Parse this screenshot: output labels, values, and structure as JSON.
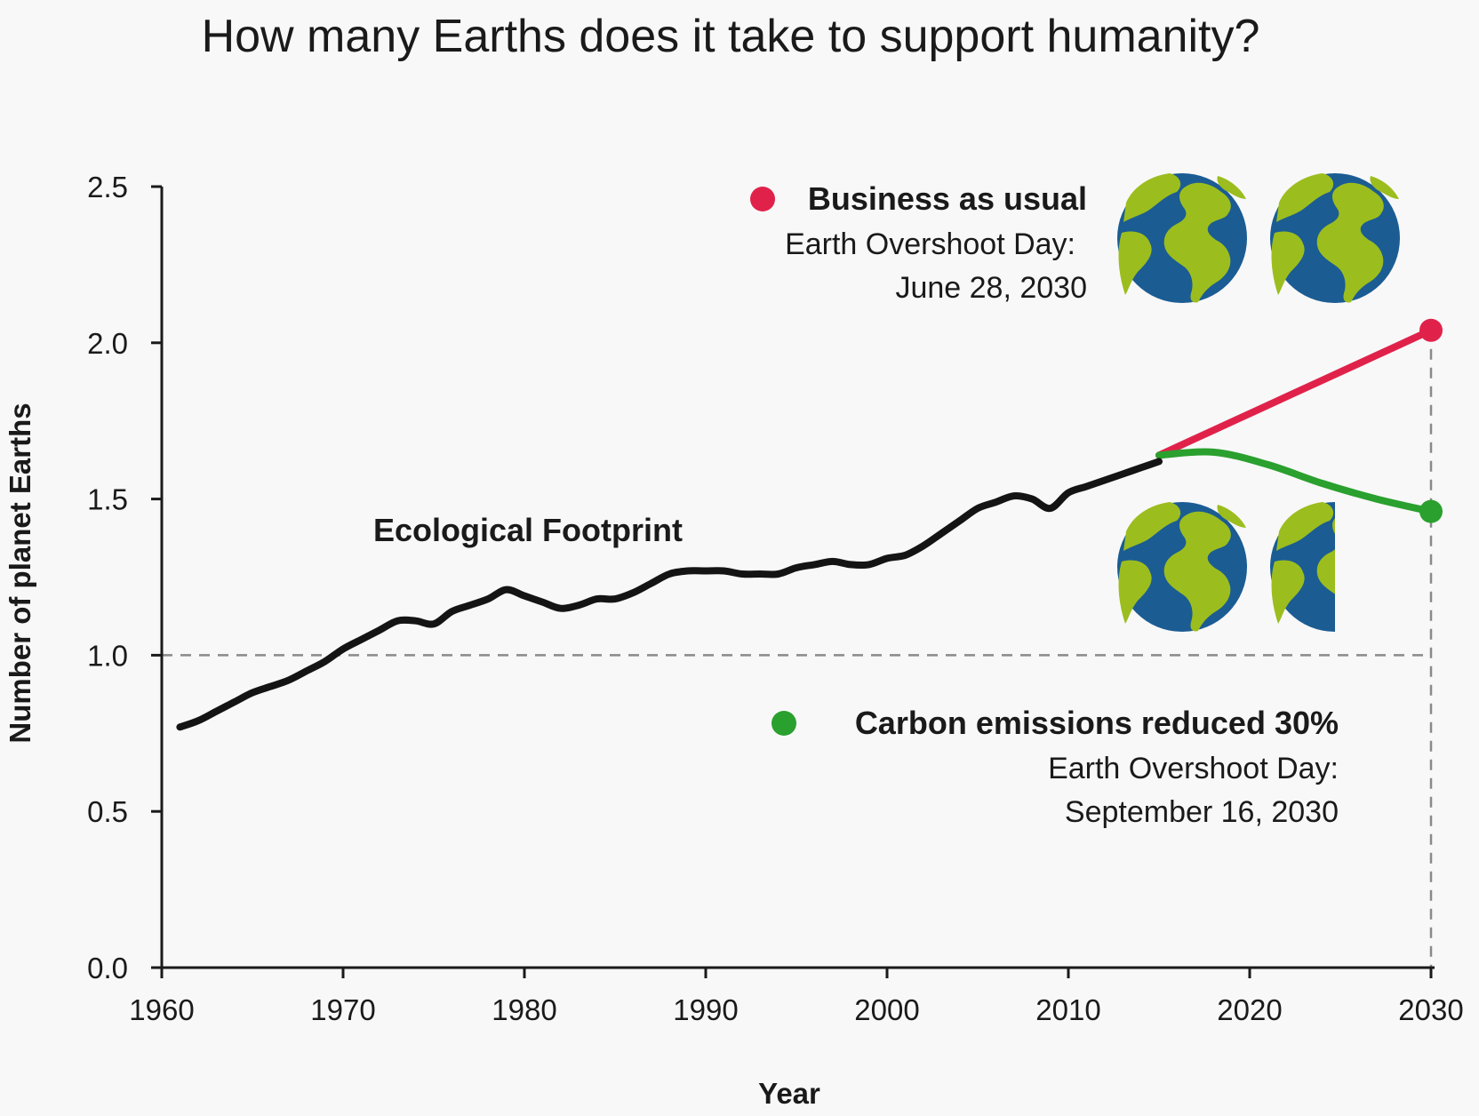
{
  "colors": {
    "background": "#f8f8f8",
    "history": "#141414",
    "business_as_usual": "#e0224a",
    "carbon_reduced": "#2aa02e",
    "reference_line": "#8a8a8a",
    "ocean": "#1b5c93",
    "land": "#9cbd1e"
  },
  "chart_data": {
    "type": "line",
    "title": "How many Earths does it take to support humanity?",
    "xlabel": "Year",
    "ylabel": "Number of planet Earths",
    "xlim": [
      1960,
      2030
    ],
    "ylim": [
      0,
      2.5
    ],
    "xticks": [
      "1960",
      "1970",
      "1980",
      "1990",
      "2000",
      "2010",
      "2020",
      "2030"
    ],
    "yticks": [
      "0.0",
      "0.5",
      "1.0",
      "1.5",
      "2.0",
      "2.5"
    ],
    "reference_y": 1.0,
    "series": [
      {
        "name": "Ecological Footprint",
        "x": [
          1961,
          1962,
          1963,
          1964,
          1965,
          1966,
          1967,
          1968,
          1969,
          1970,
          1971,
          1972,
          1973,
          1974,
          1975,
          1976,
          1977,
          1978,
          1979,
          1980,
          1981,
          1982,
          1983,
          1984,
          1985,
          1986,
          1987,
          1988,
          1989,
          1990,
          1991,
          1992,
          1993,
          1994,
          1995,
          1996,
          1997,
          1998,
          1999,
          2000,
          2001,
          2002,
          2003,
          2004,
          2005,
          2006,
          2007,
          2008,
          2009,
          2010,
          2011,
          2012,
          2013,
          2014,
          2015
        ],
        "values": [
          0.77,
          0.79,
          0.82,
          0.85,
          0.88,
          0.9,
          0.92,
          0.95,
          0.98,
          1.02,
          1.05,
          1.08,
          1.11,
          1.11,
          1.1,
          1.14,
          1.16,
          1.18,
          1.21,
          1.19,
          1.17,
          1.15,
          1.16,
          1.18,
          1.18,
          1.2,
          1.23,
          1.26,
          1.27,
          1.27,
          1.27,
          1.26,
          1.26,
          1.26,
          1.28,
          1.29,
          1.3,
          1.29,
          1.29,
          1.31,
          1.32,
          1.35,
          1.39,
          1.43,
          1.47,
          1.49,
          1.51,
          1.5,
          1.47,
          1.52,
          1.54,
          1.56,
          1.58,
          1.6,
          1.62
        ]
      },
      {
        "name": "Business as usual",
        "x": [
          2015,
          2018,
          2021,
          2024,
          2027,
          2030
        ],
        "values": [
          1.64,
          1.72,
          1.8,
          1.88,
          1.96,
          2.04
        ]
      },
      {
        "name": "Carbon emissions reduced 30%",
        "x": [
          2015,
          2018,
          2021,
          2024,
          2027,
          2030
        ],
        "values": [
          1.64,
          1.65,
          1.61,
          1.55,
          1.5,
          1.46
        ]
      }
    ],
    "annotations": {
      "footprint_label": "Ecological Footprint",
      "bau": {
        "title": "Business as usual",
        "line1": "Earth Overshoot Day:",
        "line2": "June 28, 2030",
        "earths": 2.0
      },
      "reduced": {
        "title": "Carbon emissions reduced 30%",
        "line1": "Earth Overshoot Day:",
        "line2": "September 16, 2030",
        "earths": 1.5
      }
    }
  }
}
